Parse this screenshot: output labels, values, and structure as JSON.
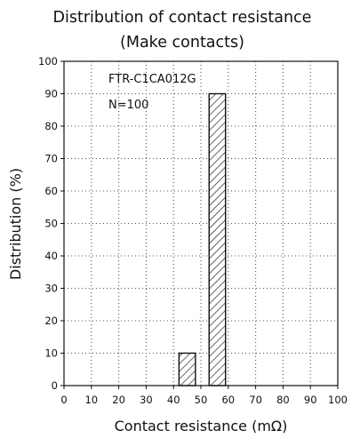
{
  "chart_data": {
    "type": "bar",
    "title": "Distribution of contact resistance",
    "subtitle": "(Make contacts)",
    "xlabel": "Contact resistance (mΩ)",
    "ylabel": "Distribution (%)",
    "xlim": [
      0,
      100
    ],
    "ylim": [
      0,
      100
    ],
    "x_ticks": [
      0,
      10,
      20,
      30,
      40,
      50,
      60,
      70,
      80,
      90,
      100
    ],
    "y_ticks": [
      0,
      10,
      20,
      30,
      40,
      50,
      60,
      70,
      80,
      90,
      100
    ],
    "bins": [
      {
        "from": 42,
        "to": 48,
        "value": 10
      },
      {
        "from": 53,
        "to": 59,
        "value": 90
      }
    ],
    "annotations": [
      "FTR-C1CA012G",
      "N=100"
    ],
    "grid": true,
    "bar_fill": "diagonal-hatch",
    "colors": {
      "bar_edge": "#111111",
      "hatch": "#111111",
      "grid": "#555555"
    }
  }
}
